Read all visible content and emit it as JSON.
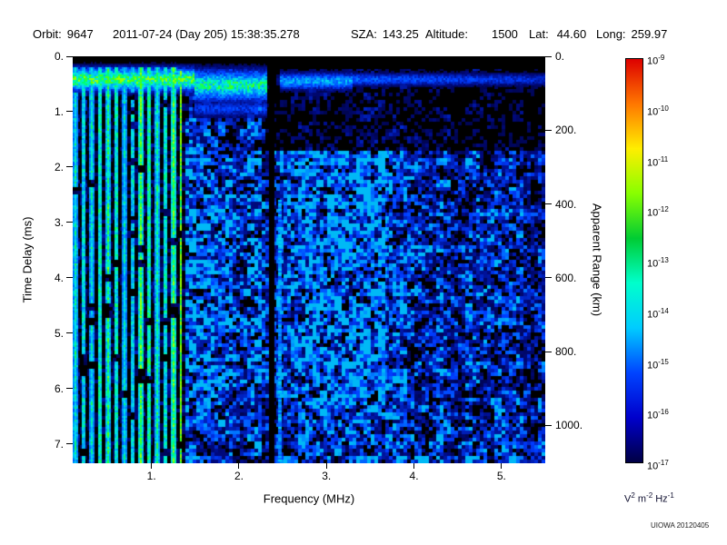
{
  "header": {
    "orbit_label": "Orbit:",
    "orbit": "9647",
    "datetime": "2011-07-24 (Day 205) 15:38:35.278",
    "sza_label": "SZA:",
    "sza": "143.25",
    "altitude_label": "Altitude:",
    "altitude": "1500",
    "lat_label": "Lat:",
    "lat": "44.60",
    "long_label": "Long:",
    "long": "259.97"
  },
  "chart_data": {
    "type": "heatmap",
    "title": "",
    "xlabel": "Frequency (MHz)",
    "ylabel": "Time Delay (ms)",
    "y2label": "Apparent Range (km)",
    "x_range": [
      0.1,
      5.5
    ],
    "y_range": [
      0,
      7.35
    ],
    "y2_range_km": [
      0,
      1101
    ],
    "x_ticks": [
      1,
      2,
      3,
      4,
      5
    ],
    "x_tick_labels": [
      "1.",
      "2.",
      "3.",
      "4.",
      "5."
    ],
    "y_ticks": [
      0,
      1,
      2,
      3,
      4,
      5,
      6,
      7
    ],
    "y_tick_labels": [
      "0.",
      "1.",
      "2.",
      "3.",
      "4.",
      "5.",
      "6.",
      "7."
    ],
    "y2_ticks_km": [
      0,
      200,
      400,
      600,
      800,
      1000
    ],
    "y2_tick_labels": [
      "0.",
      "200.",
      "400.",
      "600.",
      "800.",
      "1000."
    ],
    "grid": false,
    "background": "#000000",
    "colormap": "rainbow",
    "colorbar": {
      "base": "10",
      "exponents": [
        -9,
        -10,
        -11,
        -12,
        -13,
        -14,
        -15,
        -16,
        -17
      ],
      "unit_parts": [
        [
          "V",
          "2"
        ],
        [
          "m",
          "-2"
        ],
        [
          "Hz",
          "-1"
        ]
      ],
      "palette_top_to_bottom": [
        "#dd0000",
        "#ff7700",
        "#ffee00",
        "#88ff00",
        "#00cc33",
        "#00ffcc",
        "#00ccff",
        "#0044ff",
        "#0000cc",
        "#000044"
      ]
    },
    "features": {
      "ionosphere_echo_band": {
        "time_delay_ms": 0.45,
        "freq_range_mhz": [
          0.1,
          5.5
        ],
        "note": "bright horizontal echo trace near 0.4-0.5 ms; green below ~2.3 MHz, fading to blue at higher frequency"
      },
      "plasma_oscillation_harmonics": {
        "freq_range_mhz": [
          0.1,
          1.35
        ],
        "note": "vertical green/cyan stripes spanning the full time-delay range"
      },
      "absorption_gap_mhz": 2.37,
      "bright_streak_mhz": 2.47,
      "noise_floor": "diffuse blue speckle over black background, denser between 1.4-3.7 MHz below ~1.7 ms delay"
    }
  },
  "credit": "UIOWA 20120405"
}
